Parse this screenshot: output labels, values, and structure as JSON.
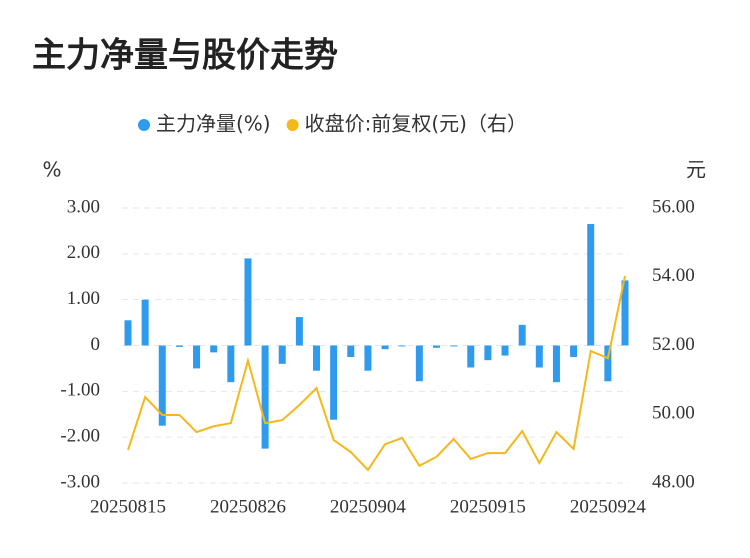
{
  "chart_data": {
    "type": "bar-line",
    "title": "主力净量与股价走势",
    "y_label": "%",
    "y2_label": "元",
    "categories": [
      "20250815",
      null,
      null,
      null,
      null,
      null,
      null,
      "20250826",
      null,
      null,
      null,
      null,
      null,
      null,
      "20250904",
      null,
      null,
      null,
      null,
      null,
      null,
      "20250915",
      null,
      null,
      null,
      null,
      null,
      null,
      "20250924",
      null
    ],
    "series": [
      {
        "name": "主力净量(%)",
        "type": "bar",
        "color": "#2f9bef",
        "values": [
          0.55,
          1.0,
          -1.75,
          -0.03,
          -0.5,
          -0.15,
          -0.8,
          1.9,
          -2.25,
          -0.4,
          0.62,
          -0.55,
          -1.62,
          -0.25,
          -0.55,
          -0.08,
          -0.02,
          -0.78,
          -0.05,
          -0.02,
          -0.48,
          -0.32,
          -0.22,
          0.45,
          -0.48,
          -0.8,
          -0.25,
          2.65,
          -0.78,
          1.42
        ]
      },
      {
        "name": "收盘价:前复权(元)（右）",
        "type": "line",
        "axis": "y2",
        "color": "#f5b819",
        "values": [
          48.96,
          50.5,
          49.98,
          49.98,
          49.48,
          49.65,
          49.74,
          51.56,
          49.74,
          49.83,
          50.27,
          50.76,
          49.25,
          48.9,
          48.38,
          49.13,
          49.31,
          48.5,
          48.76,
          49.28,
          48.7,
          48.87,
          48.87,
          49.51,
          48.58,
          49.48,
          48.99,
          51.84,
          51.63,
          54.02
        ]
      }
    ],
    "ylim": [
      -3,
      3
    ],
    "yticks": [
      {
        "value": -3,
        "label": "-3.00"
      },
      {
        "value": -2,
        "label": "-2.00"
      },
      {
        "value": -1,
        "label": "-1.00"
      },
      0,
      {
        "value": 1,
        "label": "1.00"
      },
      {
        "value": 2,
        "label": "2.00"
      },
      {
        "value": 3,
        "label": "3.00"
      }
    ],
    "y2lim": [
      48,
      56
    ],
    "y2ticks": [
      {
        "value": 48,
        "label": "48.00"
      },
      {
        "value": 50,
        "label": "50.00"
      },
      {
        "value": 52,
        "label": "52.00"
      },
      {
        "value": 54,
        "label": "54.00"
      },
      {
        "value": 56,
        "label": "56.00"
      }
    ],
    "grid": true,
    "legend": "top"
  }
}
